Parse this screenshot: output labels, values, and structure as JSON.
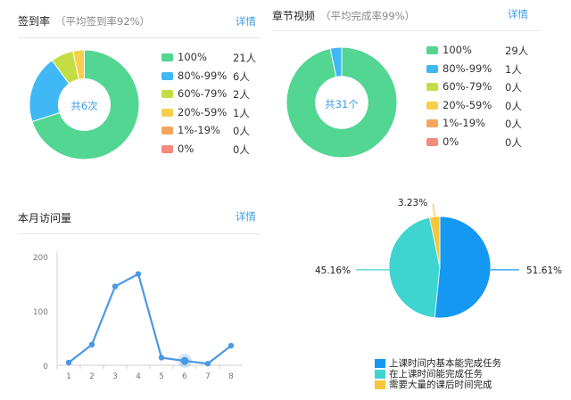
{
  "attendance": {
    "title": "签到率",
    "subtitle": "（平均签到率92%）",
    "detail": "详情",
    "center": "共6次",
    "items": [
      {
        "label": "100%",
        "count": "21人",
        "value": 21,
        "color": "#52d692"
      },
      {
        "label": "80%-99%",
        "count": "6人",
        "value": 6,
        "color": "#40b8f5"
      },
      {
        "label": "60%-79%",
        "count": "2人",
        "value": 2,
        "color": "#c5dd45"
      },
      {
        "label": "20%-59%",
        "count": "1人",
        "value": 1,
        "color": "#f7cf4a"
      },
      {
        "label": "1%-19%",
        "count": "0人",
        "value": 0,
        "color": "#f6a560"
      },
      {
        "label": "0%",
        "count": "0人",
        "value": 0,
        "color": "#f58a7c"
      }
    ]
  },
  "video": {
    "title": "章节视频",
    "subtitle": "（平均完成率99%）",
    "detail": "详情",
    "center": "共31个",
    "items": [
      {
        "label": "100%",
        "count": "29人",
        "value": 29,
        "color": "#52d692"
      },
      {
        "label": "80%-99%",
        "count": "1人",
        "value": 1,
        "color": "#40b8f5"
      },
      {
        "label": "60%-79%",
        "count": "0人",
        "value": 0,
        "color": "#c5dd45"
      },
      {
        "label": "20%-59%",
        "count": "0人",
        "value": 0,
        "color": "#f7cf4a"
      },
      {
        "label": "1%-19%",
        "count": "0人",
        "value": 0,
        "color": "#f6a560"
      },
      {
        "label": "0%",
        "count": "0人",
        "value": 0,
        "color": "#f58a7c"
      }
    ]
  },
  "visits": {
    "title": "本月访问量",
    "detail": "详情"
  },
  "pie_legend": [
    {
      "label": "上课时间内基本能完成任务",
      "color": "#1598f2"
    },
    {
      "label": "在上课时间能完成任务",
      "color": "#3ed4d0"
    },
    {
      "label": "需要大量的课后时间完成",
      "color": "#f7c63a"
    }
  ],
  "chart_data": [
    {
      "type": "pie",
      "categories": [
        "100%",
        "80%-99%",
        "60%-79%",
        "20%-59%",
        "1%-19%",
        "0%"
      ],
      "values": [
        21,
        6,
        2,
        1,
        0,
        0
      ],
      "title": "签到率",
      "center_label": "共6次"
    },
    {
      "type": "pie",
      "categories": [
        "100%",
        "80%-99%",
        "60%-79%",
        "20%-59%",
        "1%-19%",
        "0%"
      ],
      "values": [
        29,
        1,
        0,
        0,
        0,
        0
      ],
      "title": "章节视频",
      "center_label": "共31个"
    },
    {
      "type": "line",
      "title": "本月访问量",
      "x": [
        "1",
        "2",
        "3",
        "4",
        "5",
        "6",
        "7",
        "8"
      ],
      "values": [
        5,
        38,
        145,
        168,
        14,
        8,
        3,
        36
      ],
      "yticks": [
        "0",
        "100",
        "200"
      ],
      "ylim": [
        0,
        200
      ],
      "highlight_index": 5,
      "color": "#4a98e6"
    },
    {
      "type": "pie",
      "categories": [
        "上课时间内基本能完成任务",
        "在上课时间能完成任务",
        "需要大量的课后时间完成"
      ],
      "values": [
        51.61,
        45.16,
        3.23
      ],
      "data_labels": [
        "51.61%",
        "45.16%",
        "3.23%"
      ],
      "colors": [
        "#1598f2",
        "#3ed4d0",
        "#f7c63a"
      ]
    }
  ]
}
